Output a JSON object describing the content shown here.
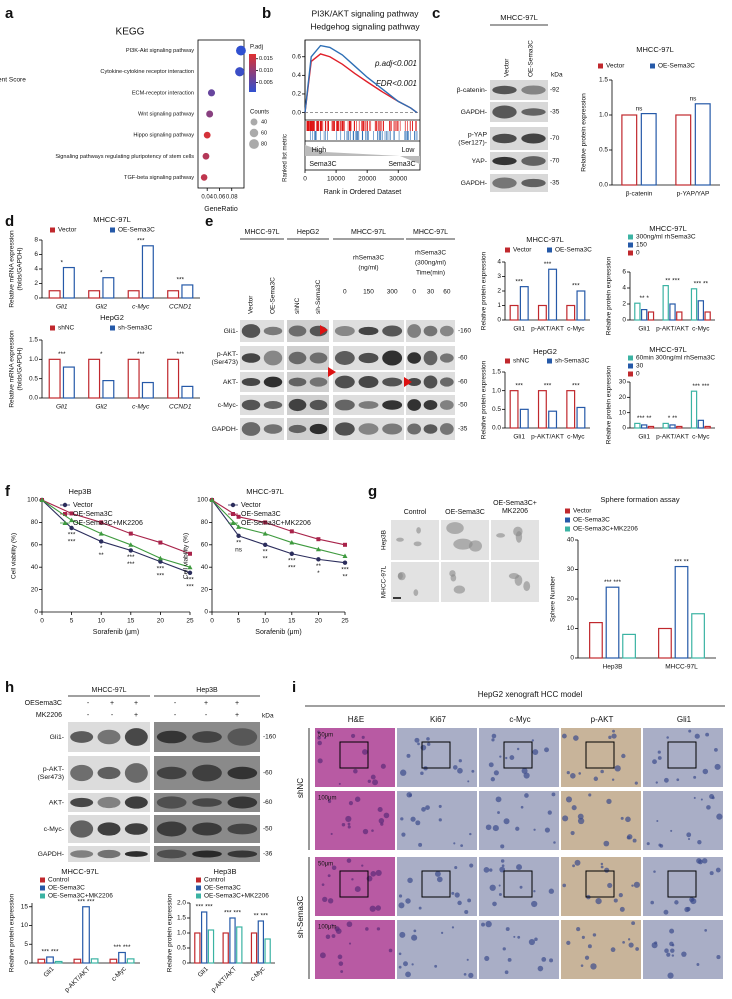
{
  "figure": {
    "panel_letters": [
      "a",
      "b",
      "c",
      "d",
      "e",
      "f",
      "g",
      "h",
      "i"
    ],
    "c_blot": {
      "cell_line": "MHCC-97L",
      "lanes": [
        "Vector",
        "OE-Sema3C"
      ],
      "unit": "kDa",
      "rows": [
        [
          "β-catenin-"
        ],
        [
          "GAPDH-"
        ],
        [
          "p-YAP",
          "(Ser127)-"
        ],
        [
          "YAP-"
        ],
        [
          "GAPDH-"
        ]
      ],
      "markers": [
        "-92",
        "-35",
        "-70",
        "-70",
        "-35"
      ]
    },
    "e_blot": {
      "groups": [
        {
          "cell_line": "MHCC-97L",
          "lanes": [
            "Vector",
            "OE-Sema3C"
          ]
        },
        {
          "cell_line": "HepG2",
          "lanes": [
            "shNC",
            "sh-Sema3C"
          ]
        },
        {
          "cell_line": "MHCC-97L",
          "treatment": [
            "rhSema3C",
            "(ng/ml)"
          ],
          "lanes": [
            "0",
            "150",
            "300"
          ]
        },
        {
          "cell_line": "MHCC-97L",
          "treatment": [
            "rhSema3C",
            "(300ng/ml)",
            "Time(min)"
          ],
          "lanes": [
            "0",
            "30",
            "60"
          ]
        }
      ],
      "rows": [
        [
          "Gli1-"
        ],
        [
          "p-AKT-",
          "(Ser473)"
        ],
        [
          "AKT-"
        ],
        [
          "c-Myc-"
        ],
        [
          "GAPDH-"
        ]
      ],
      "markers": [
        "-160",
        "-60",
        "-60",
        "-50",
        "-35"
      ]
    },
    "g_images": {
      "columns": [
        [
          "Control"
        ],
        [
          "OE-Sema3C"
        ],
        [
          "OE-Sema3C+",
          "MK2206"
        ]
      ],
      "rows": [
        "Hep3B",
        "MHCC-97L"
      ]
    },
    "h_blot": {
      "groups": [
        "MHCC-97L",
        "Hep3B"
      ],
      "unit": "kDa",
      "conditions": [
        {
          "name": "OESema3C",
          "marks": [
            "-",
            "+",
            "+",
            "-",
            "+",
            "+"
          ]
        },
        {
          "name": "MK2206",
          "marks": [
            "-",
            "-",
            "+",
            "-",
            "-",
            "+"
          ]
        }
      ],
      "rows": [
        [
          "Gli1-"
        ],
        [
          "p-AKT-",
          "(Ser473)"
        ],
        [
          "AKT-"
        ],
        [
          "c-Myc-"
        ],
        [
          "GAPDH-"
        ]
      ],
      "markers": [
        "-160",
        "-60",
        "-60",
        "-50",
        "-36"
      ]
    },
    "i_ihc": {
      "title": "HepG2 xenograft HCC model",
      "columns": [
        "H&E",
        "Ki67",
        "c-Myc",
        "p-AKT",
        "Gli1"
      ],
      "groups": [
        "shNC",
        "sh-Sema3C"
      ],
      "scales": [
        "50μm",
        "100μm",
        "50μm",
        "100μm"
      ]
    }
  },
  "chart_data": [
    {
      "type": "scatter",
      "title": "KEGG",
      "xlabel": "GeneRatio",
      "categories": [
        "PI3K-Akt signaling pathway",
        "Cytokine-cytokine receptor interaction",
        "ECM-receptor interaction",
        "Wnt signaling pathway",
        "Hippo signaling pathway",
        "Signaling pathways regulating pluripotency of stem cells",
        "TGF-beta signaling pathway"
      ],
      "x": [
        0.095,
        0.093,
        0.047,
        0.044,
        0.04,
        0.038,
        0.035
      ],
      "sizes": [
        80,
        70,
        42,
        40,
        38,
        38,
        36
      ],
      "padj": [
        0.001,
        0.002,
        0.006,
        0.009,
        0.016,
        0.013,
        0.014
      ],
      "xlim": [
        0.025,
        0.1
      ],
      "xticks": [
        0.04,
        0.06,
        0.08
      ],
      "color_title": "P.adj",
      "clim": [
        0.001,
        0.017
      ],
      "cticks": [
        0.015,
        {
          "value": 0.01,
          "label": "0.010"
        },
        0.005
      ],
      "size_title": "Counts",
      "size_ticks": [
        40,
        60,
        80
      ]
    },
    {
      "type": "line",
      "ylabel": "Enrichment Score",
      "xlabel": "Rank in Ordered Dataset",
      "x": [
        0,
        2000,
        5000,
        8000,
        12000,
        16000,
        20000,
        25000,
        30000,
        34000,
        36000
      ],
      "series": [
        {
          "name": "PI3K/AKT signaling pathway",
          "color": "#e0202a",
          "values": [
            0,
            0.55,
            0.63,
            0.6,
            0.52,
            0.42,
            0.33,
            0.22,
            0.12,
            0.05,
            0
          ]
        },
        {
          "name": "Hedgehog signaling pathway",
          "color": "#2e6fb5",
          "values": [
            0,
            0.6,
            0.72,
            0.7,
            0.62,
            0.5,
            0.38,
            0.25,
            0.12,
            0.05,
            0
          ]
        }
      ],
      "xlim": [
        0,
        37000
      ],
      "xticks": [
        0,
        10000,
        20000,
        30000
      ],
      "ylim": [
        -0.08,
        0.78
      ],
      "yticks": [
        {
          "value": 0,
          "label": "0.0"
        },
        0.2,
        0.4,
        0.6
      ],
      "stats": [
        "p.adj<0.001",
        "FDR<0.001"
      ],
      "metric_label": "Ranked list metric",
      "ends": [
        "High",
        "Low"
      ],
      "group_labels": [
        "Sema3C",
        "Sema3C"
      ]
    },
    {
      "type": "bar",
      "title": "MHCC-97L",
      "ylabel": "Relative protein expression",
      "categories": [
        "β-catenin",
        "p-YAP/YAP"
      ],
      "series": [
        {
          "name": "Vector",
          "color": "#c0282d",
          "values": [
            1.0,
            1.0
          ]
        },
        {
          "name": "OE-Sema3C",
          "color": "#2559a8",
          "values": [
            1.02,
            1.16
          ]
        }
      ],
      "ylim": [
        0,
        1.5
      ],
      "yticks": [
        {
          "value": 0,
          "label": "0.0"
        },
        0.5,
        {
          "value": 1,
          "label": "1.0"
        },
        1.5
      ],
      "annotations": [
        "ns",
        "ns"
      ]
    },
    {
      "type": "bar",
      "title": "MHCC-97L",
      "ylabel": [
        "Relative mRNA expression",
        "(folds/GAPDH)"
      ],
      "italic": true,
      "categories": [
        "Gli1",
        "Gli2",
        "c-Myc",
        "CCND1"
      ],
      "series": [
        {
          "name": "Vector",
          "color": "#c0282d",
          "values": [
            1,
            1,
            1,
            1
          ]
        },
        {
          "name": "OE-Sema3C",
          "color": "#2559a8",
          "values": [
            4.2,
            2.8,
            7.2,
            1.8
          ]
        }
      ],
      "ylim": [
        0,
        8
      ],
      "yticks": [
        0,
        2,
        4,
        6,
        8
      ],
      "annotations": [
        "*",
        "*",
        "***",
        "***"
      ]
    },
    {
      "type": "bar",
      "title": "HepG2",
      "ylabel": [
        "Relative mRNA expression",
        "(folds/GAPDH)"
      ],
      "italic": true,
      "categories": [
        "Gli1",
        "Gli2",
        "c-Myc",
        "CCND1"
      ],
      "series": [
        {
          "name": "shNC",
          "color": "#c0282d",
          "values": [
            1,
            1,
            1,
            1
          ]
        },
        {
          "name": "sh-Sema3C",
          "color": "#2559a8",
          "values": [
            0.8,
            0.45,
            0.4,
            0.3
          ]
        }
      ],
      "ylim": [
        0,
        1.5
      ],
      "yticks": [
        {
          "value": 0,
          "label": "0.0"
        },
        0.5,
        {
          "value": 1,
          "label": "1.0"
        },
        1.5
      ],
      "annotations": [
        "***",
        "*",
        "***",
        "***"
      ]
    },
    {
      "type": "bar",
      "title": "MHCC-97L",
      "ylabel": "Relative protein expression",
      "categories": [
        "Gli1",
        "p-AKT/AKT",
        "c-Myc"
      ],
      "series": [
        {
          "name": "Vector",
          "color": "#c0282d",
          "values": [
            1,
            1,
            1
          ]
        },
        {
          "name": "OE-Sema3C",
          "color": "#2559a8",
          "values": [
            2.3,
            3.5,
            2.0
          ]
        }
      ],
      "ylim": [
        0,
        4
      ],
      "yticks": [
        0,
        1,
        2,
        3,
        4
      ],
      "annotations": [
        "***",
        "***",
        "***"
      ]
    },
    {
      "type": "bar",
      "title": "MHCC-97L",
      "ylabel": "Relative protein expression",
      "categories": [
        "Gli1",
        "p-AKT/AKT",
        "c-Myc"
      ],
      "series": [
        {
          "name": "300ng/ml rhSema3C",
          "color": "#3bb3a3",
          "values": [
            2.1,
            4.3,
            3.9
          ]
        },
        {
          "name": "150",
          "color": "#2559a8",
          "values": [
            1.3,
            2.0,
            2.4
          ]
        },
        {
          "name": "0",
          "color": "#c0282d",
          "values": [
            1,
            1,
            1
          ]
        }
      ],
      "ylim": [
        0,
        6
      ],
      "yticks": [
        0,
        2,
        4,
        6
      ],
      "annotations": [
        "** *",
        "** ***",
        "*** **"
      ]
    },
    {
      "type": "bar",
      "title": "HepG2",
      "ylabel": "Relative protein expression",
      "categories": [
        "Gli1",
        "p-AKT/AKT",
        "c-Myc"
      ],
      "series": [
        {
          "name": "shNC",
          "color": "#c0282d",
          "values": [
            1,
            1,
            1
          ]
        },
        {
          "name": "sh-Sema3C",
          "color": "#2559a8",
          "values": [
            0.5,
            0.45,
            0.55
          ]
        }
      ],
      "ylim": [
        0,
        1.5
      ],
      "yticks": [
        {
          "value": 0,
          "label": "0.0"
        },
        0.5,
        {
          "value": 1,
          "label": "1.0"
        },
        1.5
      ],
      "annotations": [
        "***",
        "***",
        "***"
      ]
    },
    {
      "type": "bar",
      "title": "MHCC-97L",
      "ylabel": "Relative protein expression",
      "categories": [
        "Gli1",
        "p-AKT/AKT",
        "c-Myc"
      ],
      "series": [
        {
          "name": "60min 300ng/ml rhSema3C",
          "color": "#3bb3a3",
          "values": [
            3,
            3,
            24
          ]
        },
        {
          "name": "30",
          "color": "#2559a8",
          "values": [
            2,
            2,
            5
          ]
        },
        {
          "name": "0",
          "color": "#c0282d",
          "values": [
            1,
            1,
            1
          ]
        }
      ],
      "ylim": [
        0,
        30
      ],
      "yticks": [
        0,
        10,
        20,
        30
      ],
      "annotations": [
        "*** **",
        "* **",
        "*** ***"
      ]
    },
    {
      "type": "line",
      "title": "Hep3B",
      "ylabel": "Cell viability (%)",
      "xlabel": "Sorafenib (μm)",
      "markers": true,
      "x": [
        0,
        5,
        10,
        15,
        20,
        25
      ],
      "series": [
        {
          "name": "Vector",
          "color": "#2b2d5c",
          "values": [
            100,
            75,
            63,
            55,
            45,
            35
          ]
        },
        {
          "name": "OE-Sema3C",
          "color": "#a8234a",
          "values": [
            100,
            88,
            80,
            70,
            62,
            52
          ]
        },
        {
          "name": "OE-Sema3C+MK2206",
          "color": "#3e9a3e",
          "values": [
            100,
            82,
            70,
            60,
            48,
            40
          ]
        }
      ],
      "xlim": [
        0,
        25
      ],
      "xticks": [
        0,
        5,
        10,
        15,
        20,
        25
      ],
      "ylim": [
        0,
        100
      ],
      "yticks": [
        0,
        20,
        40,
        60,
        80,
        100
      ],
      "annotations": [
        {
          "color": "#c0282d",
          "labels": [
            null,
            "***",
            "*",
            "***",
            "***",
            "***"
          ]
        },
        {
          "color": "#3e9a3e",
          "labels": [
            null,
            "***",
            "**",
            "***",
            "***",
            "***"
          ]
        }
      ]
    },
    {
      "type": "line",
      "title": "MHCC-97L",
      "ylabel": "Cell viability (%)",
      "xlabel": "Sorafenib (μm)",
      "markers": true,
      "x": [
        0,
        5,
        10,
        15,
        20,
        25
      ],
      "series": [
        {
          "name": "Vector",
          "color": "#2b2d5c",
          "values": [
            100,
            68,
            60,
            52,
            47,
            44
          ]
        },
        {
          "name": "OE-Sema3C",
          "color": "#a8234a",
          "values": [
            100,
            85,
            80,
            72,
            65,
            60
          ]
        },
        {
          "name": "OE-Sema3C+MK2206",
          "color": "#3e9a3e",
          "values": [
            100,
            76,
            70,
            62,
            56,
            50
          ]
        }
      ],
      "xlim": [
        0,
        25
      ],
      "xticks": [
        0,
        5,
        10,
        15,
        20,
        25
      ],
      "ylim": [
        0,
        100
      ],
      "yticks": [
        0,
        20,
        40,
        60,
        80,
        100
      ],
      "annotations": [
        {
          "color": "#c0282d",
          "labels": [
            null,
            "**",
            "**",
            "***",
            "**",
            "***"
          ]
        },
        {
          "color": "#3e9a3e",
          "labels": [
            null,
            "ns",
            "**",
            "***",
            "*",
            "**"
          ]
        }
      ]
    },
    {
      "type": "bar",
      "title": "Sphere formation assay",
      "ylabel": "Sphere Number",
      "categories": [
        "Hep3B",
        "MHCC-97L"
      ],
      "series": [
        {
          "name": "Vector",
          "color": "#c0282d",
          "values": [
            12,
            10
          ]
        },
        {
          "name": "OE-Sema3C",
          "color": "#2559a8",
          "values": [
            24,
            31
          ]
        },
        {
          "name": "OE-Sema3C+MK2206",
          "color": "#3bb3a3",
          "values": [
            8,
            15
          ]
        }
      ],
      "ylim": [
        0,
        40
      ],
      "yticks": [
        0,
        10,
        20,
        30,
        40
      ],
      "annotations": [
        "*** ***",
        "*** **"
      ]
    },
    {
      "type": "bar",
      "title": "MHCC-97L",
      "ylabel": "Relative protein expression",
      "categories": [
        "Gli1",
        "p-AKT/AKT",
        "c-Myc"
      ],
      "series": [
        {
          "name": "Control",
          "color": "#c0282d",
          "values": [
            1,
            1,
            1
          ]
        },
        {
          "name": "OE-Sema3C",
          "color": "#2559a8",
          "values": [
            1.6,
            15,
            2.8
          ]
        },
        {
          "name": "OE-Sema3C+MK2206",
          "color": "#3bb3a3",
          "values": [
            0.4,
            1.1,
            1.1
          ]
        }
      ],
      "ylim": [
        0,
        16
      ],
      "yticks": [
        0,
        5,
        10,
        15
      ],
      "annotations": [
        "*** ***",
        "*** ***",
        "*** ***"
      ]
    },
    {
      "type": "bar",
      "title": "Hep3B",
      "ylabel": "Relative protein expression",
      "categories": [
        "Gli1",
        "p-AKT/AKT",
        "c-Myc"
      ],
      "series": [
        {
          "name": "Control",
          "color": "#c0282d",
          "values": [
            1,
            1,
            1
          ]
        },
        {
          "name": "OE-Sema3C",
          "color": "#2559a8",
          "values": [
            1.7,
            1.5,
            1.4
          ]
        },
        {
          "name": "OE-Sema3C+MK2206",
          "color": "#3bb3a3",
          "values": [
            1.1,
            1.2,
            0.8
          ]
        }
      ],
      "ylim": [
        0,
        2
      ],
      "yticks": [
        0,
        0.5,
        {
          "value": 1,
          "label": "1.0"
        },
        1.5,
        {
          "value": 2,
          "label": "2.0"
        }
      ],
      "annotations": [
        "*** ***",
        "*** ***",
        "** ***"
      ]
    }
  ]
}
